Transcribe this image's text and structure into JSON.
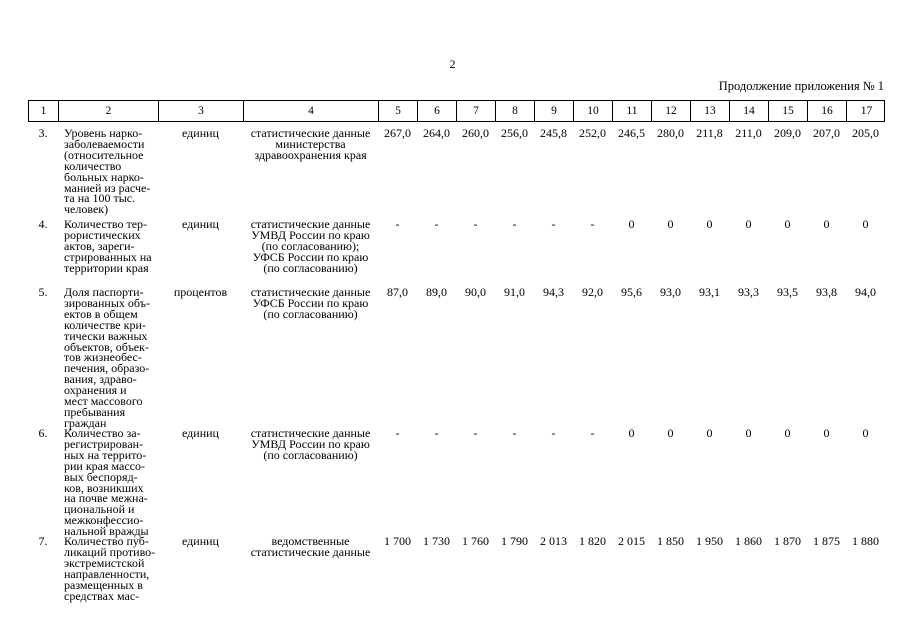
{
  "page": {
    "number": "2",
    "title": "Продолжение приложения № 1"
  },
  "table": {
    "column_numbers": [
      "1",
      "2",
      "3",
      "4",
      "5",
      "6",
      "7",
      "8",
      "9",
      "10",
      "11",
      "12",
      "13",
      "14",
      "15",
      "16",
      "17"
    ],
    "rows": [
      {
        "num": "3.",
        "indicator_lines": [
          "Уровень нарко-",
          "заболеваемости",
          "(относительное",
          "количество",
          "больных нарко-",
          "манией из расче-",
          "та на 100 тыс.",
          "человек)"
        ],
        "unit": "единиц",
        "source_lines": [
          "статистические данные",
          "министерства",
          "здравоохранения края"
        ],
        "values": [
          "267,0",
          "264,0",
          "260,0",
          "256,0",
          "245,8",
          "252,0",
          "246,5",
          "280,0",
          "211,8",
          "211,0",
          "209,0",
          "207,0",
          "205,0"
        ]
      },
      {
        "num": "4.",
        "indicator_lines": [
          "Количество тер-",
          "рористических",
          "актов, зареги-",
          "стрированных на",
          "территории края"
        ],
        "unit": "единиц",
        "source_lines": [
          "статистические данные",
          "УМВД России по краю",
          "(по согласованию);",
          "УФСБ России по краю",
          "(по согласованию)"
        ],
        "values": [
          "-",
          "-",
          "-",
          "-",
          "-",
          "-",
          "0",
          "0",
          "0",
          "0",
          "0",
          "0",
          "0"
        ]
      },
      {
        "num": "5.",
        "indicator_lines": [
          "Доля паспорти-",
          "зированных объ-",
          "ектов в общем",
          "количестве кри-",
          "тически важных",
          "объектов, объек-",
          "тов жизнеобес-",
          "печения, образо-",
          "вания, здраво-",
          "охранения и",
          "мест массового",
          "пребывания",
          "граждан"
        ],
        "unit": "процентов",
        "source_lines": [
          "статистические данные",
          "УФСБ России по краю",
          "(по согласованию)"
        ],
        "values": [
          "87,0",
          "89,0",
          "90,0",
          "91,0",
          "94,3",
          "92,0",
          "95,6",
          "93,0",
          "93,1",
          "93,3",
          "93,5",
          "93,8",
          "94,0"
        ]
      },
      {
        "num": "6.",
        "indicator_lines": [
          "Количество за-",
          "регистрирован-",
          "ных на террито-",
          "рии края массо-",
          "вых беспоряд-",
          "ков, возникших",
          "на почве межна-",
          "циональной и",
          "межконфессио-",
          "нальной вражды"
        ],
        "unit": "единиц",
        "source_lines": [
          "статистические данные",
          "УМВД России по краю",
          "(по согласованию)"
        ],
        "values": [
          "-",
          "-",
          "-",
          "-",
          "-",
          "-",
          "0",
          "0",
          "0",
          "0",
          "0",
          "0",
          "0"
        ]
      },
      {
        "num": "7.",
        "indicator_lines": [
          "Количество пуб-",
          "ликаций противо-",
          "экстремистской",
          "направленности,",
          "размещенных в",
          "средствах мас-"
        ],
        "unit": "единиц",
        "source_lines": [
          "ведомственные",
          "статистические данные"
        ],
        "values": [
          "1 700",
          "1 730",
          "1 760",
          "1 790",
          "2 013",
          "1 820",
          "2 015",
          "1 850",
          "1 950",
          "1 860",
          "1 870",
          "1 875",
          "1 880"
        ]
      }
    ]
  }
}
